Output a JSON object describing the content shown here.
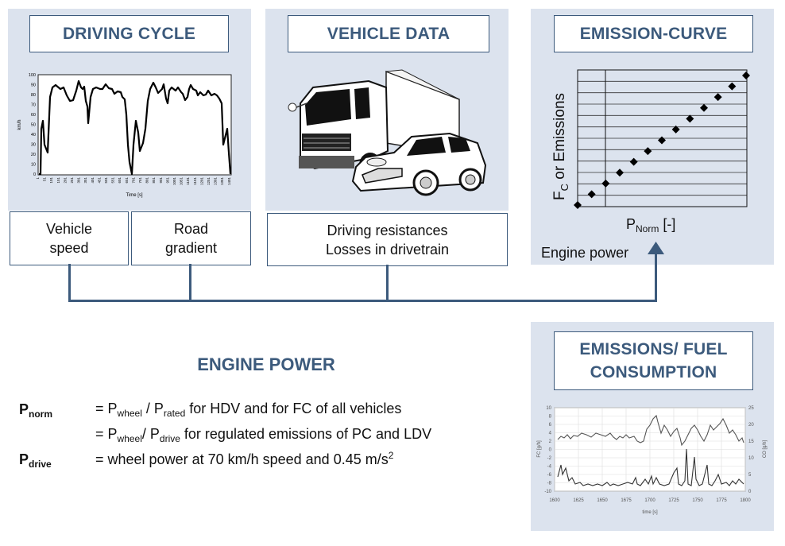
{
  "driving_cycle": {
    "title": "DRIVING CYCLE",
    "chart": {
      "xlabel": "Time [s]",
      "ylabel": "km/h",
      "yticks": [
        "0",
        "10",
        "20",
        "30",
        "40",
        "50",
        "60",
        "70",
        "80",
        "90",
        "100"
      ],
      "xticks": [
        "1",
        "51",
        "101",
        "151",
        "201",
        "251",
        "301",
        "351",
        "401",
        "451",
        "501",
        "551",
        "601",
        "651",
        "701",
        "751",
        "801",
        "851",
        "901",
        "951",
        "1001",
        "1051",
        "1101",
        "1151",
        "1201",
        "1251",
        "1301",
        "1351",
        "1401"
      ]
    },
    "labels": {
      "speed": "Vehicle\nspeed",
      "gradient": "Road\ngradient"
    }
  },
  "vehicle_data": {
    "title": "VEHICLE DATA",
    "label": "Driving resistances\nLosses in drivetrain"
  },
  "emission_curve": {
    "title": "EMISSION-CURVE",
    "ylabel_main": "F",
    "ylabel_sub": "C",
    "ylabel_rest": " or Emissions",
    "xlabel_main": "P",
    "xlabel_sub": "Norm",
    "xlabel_rest": " [-]",
    "engine_power_label": "Engine power"
  },
  "engine_power": {
    "title": "ENGINE POWER",
    "rows": [
      {
        "sym": "P",
        "sym_sub": "norm",
        "t1": "= P",
        "s1": "wheel",
        "t2": " / P",
        "s2": "rated",
        "t3": " for HDV and for FC of all vehicles"
      },
      {
        "t1": "= P",
        "s1": "wheel",
        "t2": "/ P",
        "s2": "drive",
        "t3": " for regulated emissions of PC and LDV"
      },
      {
        "sym": "P",
        "sym_sub": "drive",
        "t1": "= wheel power at 70 km/h speed and 0.45 m/s",
        "sup": "2"
      }
    ]
  },
  "emissions": {
    "title": "EMISSIONS/ FUEL\nCONSUMPTION",
    "chart": {
      "xlabel": "time [s]",
      "ylabel_left": "FC [g/h]",
      "ylabel_right": "CO [g/h]",
      "yticks_left": [
        "10",
        "8",
        "6",
        "4",
        "2",
        "0",
        "-2",
        "-4",
        "-6",
        "-8",
        "-10"
      ],
      "yticks_right": [
        "25",
        "20",
        "15",
        "10",
        "5",
        "0"
      ],
      "xticks": [
        "1600",
        "1625",
        "1650",
        "1675",
        "1700",
        "1725",
        "1750",
        "1775",
        "1800"
      ]
    }
  },
  "colors": {
    "panel": "#dce3ee",
    "accent": "#3c5a7c"
  }
}
